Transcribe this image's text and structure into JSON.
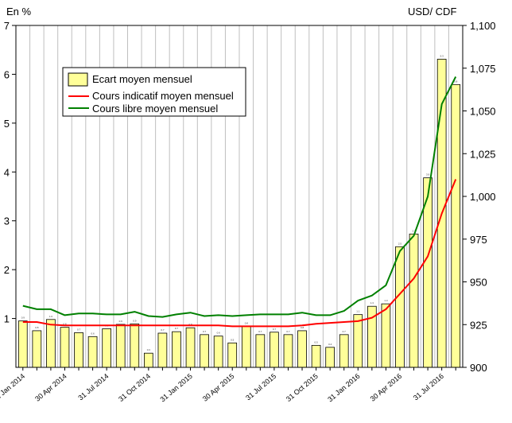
{
  "chart_data": {
    "type": "bar+line",
    "left_axis_title": "En %",
    "right_axis_title": "USD/ CDF",
    "left_ylim": [
      0,
      7
    ],
    "left_ticks": [
      1,
      2,
      3,
      4,
      5,
      6,
      7
    ],
    "right_ylim": [
      900,
      1100
    ],
    "right_ticks": [
      "900",
      "925",
      "950",
      "975",
      "1,000",
      "1,025",
      "1,050",
      "1,075",
      "1,100"
    ],
    "x_tick_labels": [
      "31 Jan 2014",
      "30 Apr 2014",
      "31 Jul 2014",
      "31 Oct 2014",
      "31 Jan 2015",
      "30 Apr 2015",
      "31 Jul 2015",
      "31 Oct 2015",
      "31 Jan 2016",
      "30 Apr 2016",
      "31 Jul 2016"
    ],
    "grid": "vertical",
    "legend": "top-left",
    "series": [
      {
        "name": "Ecart moyen mensuel",
        "kind": "bar",
        "axis": "left",
        "color": "#ffff99",
        "values": [
          0.95,
          0.75,
          0.98,
          0.82,
          0.71,
          0.63,
          0.79,
          0.88,
          0.89,
          0.29,
          0.7,
          0.73,
          0.81,
          0.67,
          0.64,
          0.5,
          0.84,
          0.67,
          0.72,
          0.67,
          0.75,
          0.45,
          0.41,
          0.67,
          1.08,
          1.25,
          1.3,
          2.47,
          2.73,
          3.88,
          6.31,
          5.79
        ]
      },
      {
        "name": "Cours indicatif moyen mensuel",
        "kind": "line",
        "axis": "right",
        "color": "#ff0000",
        "values": [
          926.5,
          926.5,
          925.0,
          924.5,
          924.5,
          924.5,
          924.5,
          924.5,
          924.5,
          924.5,
          924.5,
          924.5,
          924.5,
          924.5,
          924.5,
          924.0,
          924.0,
          924.0,
          924.0,
          924.0,
          924.5,
          925.5,
          926.0,
          926.5,
          927.0,
          929.0,
          934.0,
          943.0,
          952.0,
          965.0,
          990.0,
          1010.0
        ]
      },
      {
        "name": "Cours libre moyen mensuel",
        "kind": "line",
        "axis": "right",
        "color": "#008000",
        "values": [
          936.0,
          934.0,
          934.0,
          930.5,
          931.5,
          931.5,
          931.0,
          931.0,
          932.5,
          930.0,
          929.5,
          931.0,
          932.0,
          930.0,
          930.5,
          930.0,
          930.5,
          931.0,
          931.0,
          931.0,
          932.0,
          930.5,
          930.5,
          933.0,
          939.0,
          942.0,
          948.0,
          968.0,
          977.0,
          1000.0,
          1054.0,
          1070.0
        ]
      }
    ]
  }
}
